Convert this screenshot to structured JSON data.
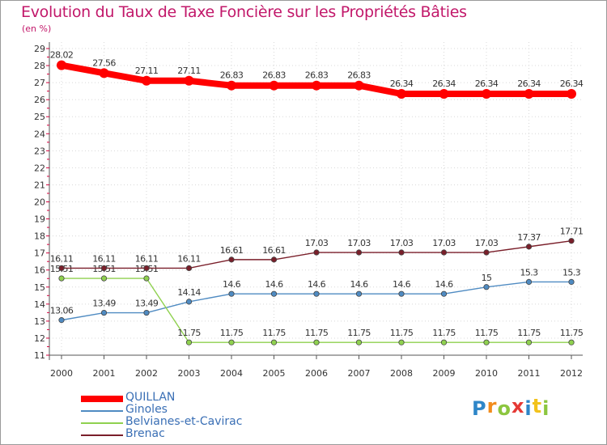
{
  "page": {
    "title": "Evolution du Taux de Taxe Foncière sur les Propriétés Bâties",
    "subtitle": "(en %)"
  },
  "logo": {
    "letters": [
      {
        "ch": "P",
        "color": "#2e86c8"
      },
      {
        "ch": "r",
        "color": "#f28c1c"
      },
      {
        "ch": "o",
        "color": "#8cc63f"
      },
      {
        "ch": "x",
        "color": "#e53935"
      },
      {
        "ch": "i",
        "color": "#2e86c8"
      },
      {
        "ch": "t",
        "color": "#f2c21c"
      },
      {
        "ch": "i",
        "color": "#8cc63f"
      }
    ]
  },
  "chart_data": {
    "type": "line",
    "title": "Evolution du Taux de Taxe Foncière sur les Propriétés Bâties",
    "ylabel": "(en %)",
    "xlabel": "",
    "ylim": [
      11,
      29
    ],
    "yticks": [
      11,
      12,
      13,
      14,
      15,
      16,
      17,
      18,
      19,
      20,
      21,
      22,
      23,
      24,
      25,
      26,
      27,
      28,
      29
    ],
    "categories": [
      "2000",
      "2001",
      "2002",
      "2003",
      "2004",
      "2005",
      "2006",
      "2007",
      "2008",
      "2009",
      "2010",
      "2011",
      "2012"
    ],
    "series": [
      {
        "name": "QUILLAN",
        "color": "#ff0000",
        "values": [
          28.02,
          27.56,
          27.11,
          27.11,
          26.83,
          26.83,
          26.83,
          26.83,
          26.34,
          26.34,
          26.34,
          26.34,
          26.34
        ],
        "labels": [
          "28.02",
          "27.56",
          "27.11",
          "27.11",
          "26.83",
          "26.83",
          "26.83",
          "26.83",
          "26.34",
          "26.34",
          "26.34",
          "26.34",
          "26.34"
        ]
      },
      {
        "name": "Ginoles",
        "color": "#4f8bc2",
        "values": [
          13.06,
          13.49,
          13.49,
          14.14,
          14.6,
          14.6,
          14.6,
          14.6,
          14.6,
          14.6,
          15,
          15.3,
          15.3
        ],
        "labels": [
          "13.06",
          "13.49",
          "13.49",
          "14.14",
          "14.6",
          "14.6",
          "14.6",
          "14.6",
          "14.6",
          "14.6",
          "15",
          "15.3",
          "15.3"
        ]
      },
      {
        "name": "Belvianes-et-Cavirac",
        "color": "#8fd14f",
        "values": [
          15.51,
          15.51,
          15.51,
          11.75,
          11.75,
          11.75,
          11.75,
          11.75,
          11.75,
          11.75,
          11.75,
          11.75,
          11.75
        ],
        "labels": [
          "15.51",
          "15.51",
          "15.51",
          "11.75",
          "11.75",
          "11.75",
          "11.75",
          "11.75",
          "11.75",
          "11.75",
          "11.75",
          "11.75",
          "11.75"
        ]
      },
      {
        "name": "Brenac",
        "color": "#7a1f2a",
        "values": [
          16.11,
          16.11,
          16.11,
          16.11,
          16.61,
          16.61,
          17.03,
          17.03,
          17.03,
          17.03,
          17.03,
          17.37,
          17.71
        ],
        "labels": [
          "16.11",
          "16.11",
          "16.11",
          "16.11",
          "16.61",
          "16.61",
          "17.03",
          "17.03",
          "17.03",
          "17.03",
          "17.03",
          "17.37",
          "17.71"
        ]
      }
    ],
    "legend": "bottom-left"
  }
}
